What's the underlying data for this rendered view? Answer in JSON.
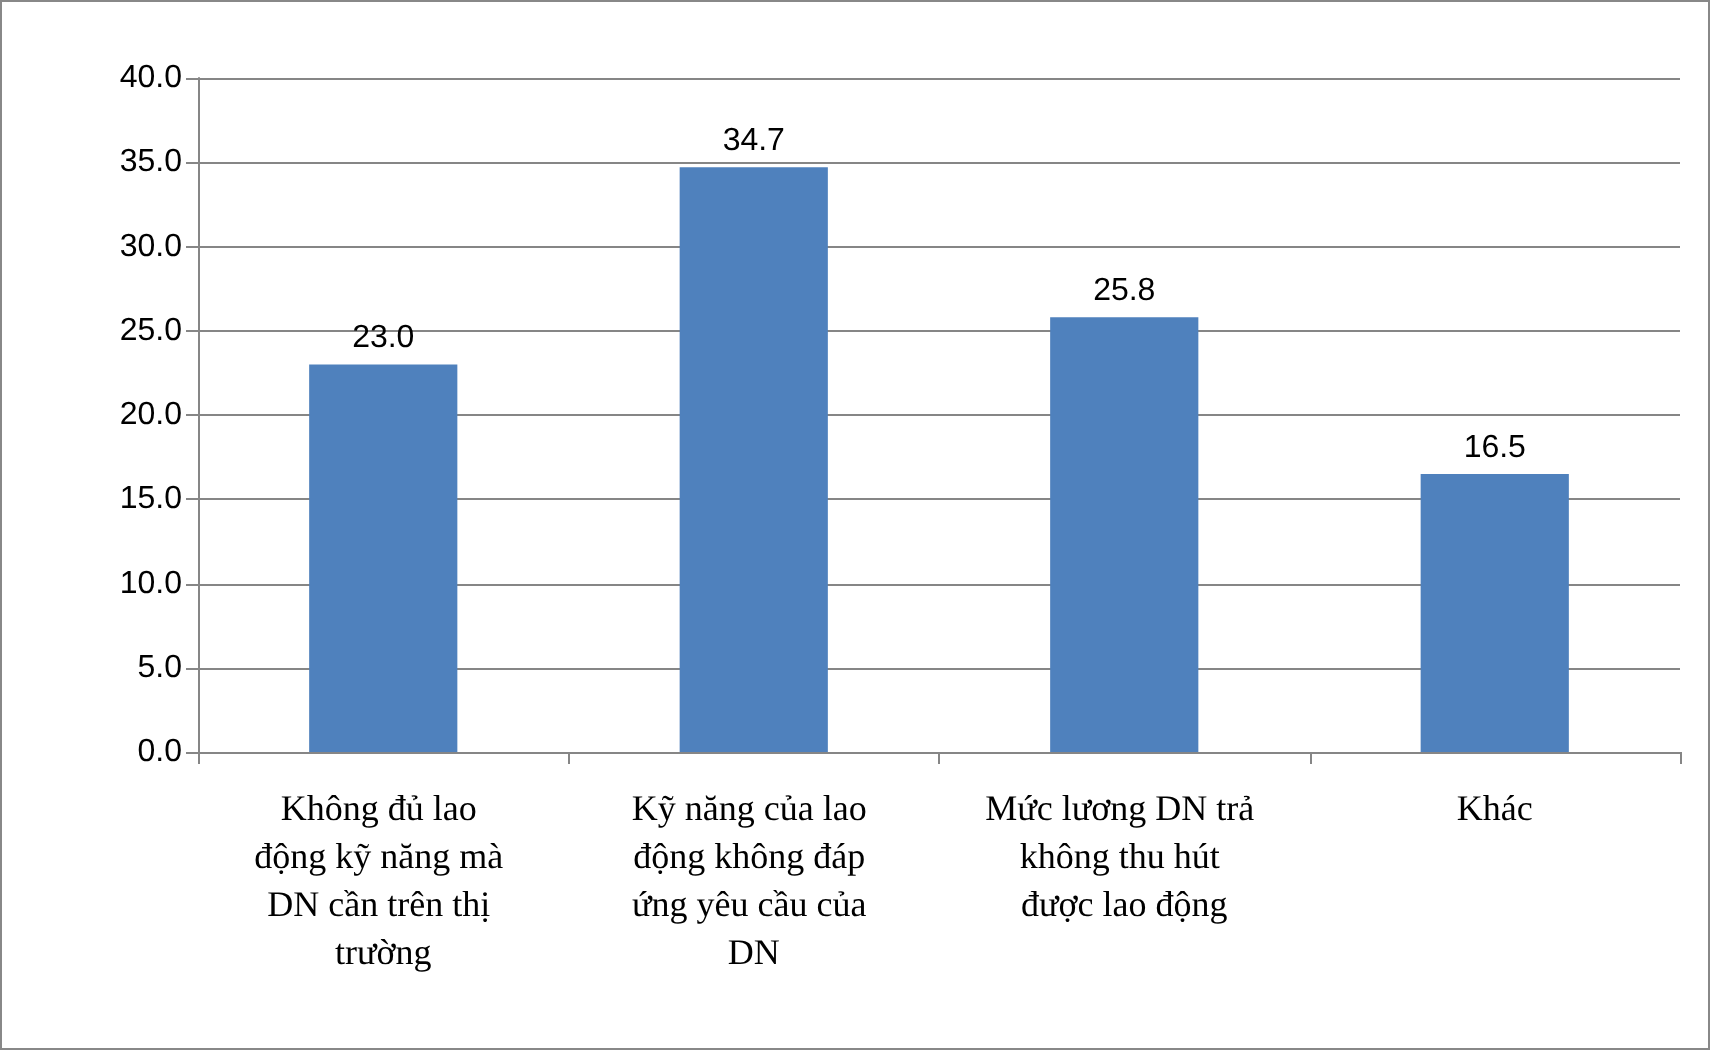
{
  "chart_data": {
    "type": "bar",
    "categories": [
      "Không đủ lao động kỹ năng mà DN cần trên thị trường",
      "Kỹ năng của lao động không đáp ứng yêu cầu của DN",
      "Mức lương DN trả không thu hút được lao động",
      "Khác"
    ],
    "values": [
      23.0,
      34.7,
      25.8,
      16.5
    ],
    "value_labels": [
      "23.0",
      "34.7",
      "25.8",
      "16.5"
    ],
    "color": "#4f81bd",
    "ylim": [
      0,
      40
    ],
    "yticks": [
      {
        "value": 0,
        "label": "0.0"
      },
      {
        "value": 5,
        "label": "5.0"
      },
      {
        "value": 10,
        "label": "10.0"
      },
      {
        "value": 15,
        "label": "15.0"
      },
      {
        "value": 20,
        "label": "20.0"
      },
      {
        "value": 25,
        "label": "25.0"
      },
      {
        "value": 30,
        "label": "30.0"
      },
      {
        "value": 35,
        "label": "35.0"
      },
      {
        "value": 40,
        "label": "40.0"
      }
    ],
    "grid": "y"
  }
}
